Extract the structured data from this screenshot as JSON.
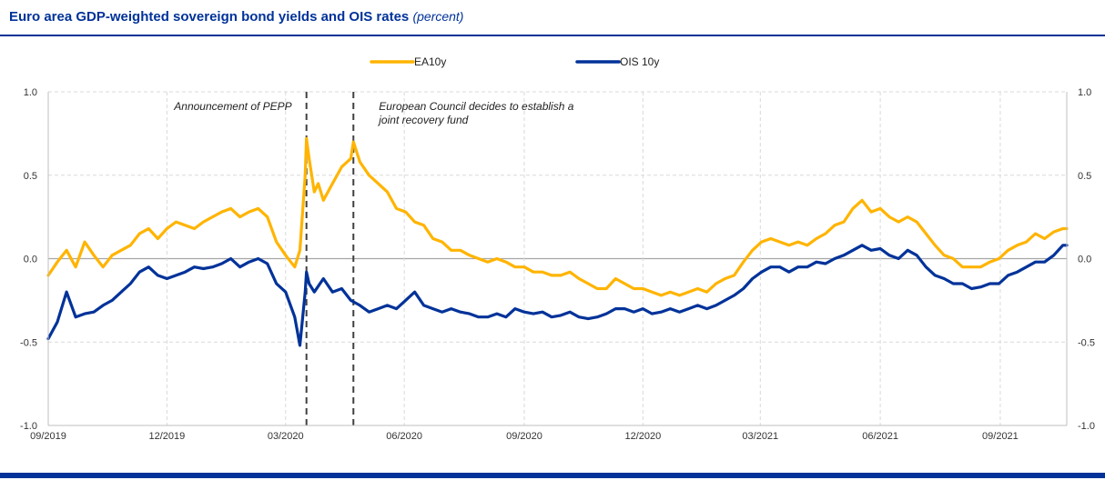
{
  "header": {
    "title": "Euro area GDP-weighted sovereign bond yields and OIS rates",
    "unit": "(percent)"
  },
  "colors": {
    "EA10y": "#FFB400",
    "OIS 10y": "#003299",
    "grid": "#d9d9d9",
    "zero_line": "#a6a6a6",
    "event_line": "#404040"
  },
  "chart_data": {
    "type": "line",
    "title": "Euro area GDP-weighted sovereign bond yields and OIS rates (percent)",
    "xlabel": "",
    "ylabel": "",
    "x_range": [
      "2019-09-02",
      "2021-10-22"
    ],
    "ylim": [
      -1.0,
      1.0
    ],
    "yticks": [
      "1.0",
      "0.5",
      "0.0",
      "-0.5",
      "-1.0"
    ],
    "ytick_values": [
      1.0,
      0.5,
      0.0,
      -0.5,
      -1.0
    ],
    "xticks": [
      "09/2019",
      "12/2019",
      "03/2020",
      "06/2020",
      "09/2020",
      "12/2020",
      "03/2021",
      "06/2021",
      "09/2021"
    ],
    "xtick_dates": [
      "2019-09-02",
      "2019-12-02",
      "2020-03-02",
      "2020-06-01",
      "2020-09-01",
      "2020-12-01",
      "2021-03-01",
      "2021-06-01",
      "2021-09-01"
    ],
    "grid": true,
    "dual_y_axis_mirrored": true,
    "legend_position": "top-center",
    "annotations": [
      {
        "date": "2020-03-18",
        "text": "Announcement of PEPP",
        "label_side": "left"
      },
      {
        "date": "2020-04-23",
        "text": "European Council decides to establish a joint recovery fund",
        "label_side": "right"
      }
    ],
    "series": [
      {
        "name": "EA10y",
        "points": [
          [
            "2019-09-02",
            -0.1
          ],
          [
            "2019-09-09",
            -0.02
          ],
          [
            "2019-09-16",
            0.05
          ],
          [
            "2019-09-23",
            -0.05
          ],
          [
            "2019-09-30",
            0.1
          ],
          [
            "2019-10-07",
            0.02
          ],
          [
            "2019-10-14",
            -0.05
          ],
          [
            "2019-10-21",
            0.02
          ],
          [
            "2019-10-28",
            0.05
          ],
          [
            "2019-11-04",
            0.08
          ],
          [
            "2019-11-11",
            0.15
          ],
          [
            "2019-11-18",
            0.18
          ],
          [
            "2019-11-25",
            0.12
          ],
          [
            "2019-12-02",
            0.18
          ],
          [
            "2019-12-09",
            0.22
          ],
          [
            "2019-12-16",
            0.2
          ],
          [
            "2019-12-23",
            0.18
          ],
          [
            "2019-12-30",
            0.22
          ],
          [
            "2020-01-06",
            0.25
          ],
          [
            "2020-01-13",
            0.28
          ],
          [
            "2020-01-20",
            0.3
          ],
          [
            "2020-01-27",
            0.25
          ],
          [
            "2020-02-03",
            0.28
          ],
          [
            "2020-02-10",
            0.3
          ],
          [
            "2020-02-17",
            0.25
          ],
          [
            "2020-02-24",
            0.1
          ],
          [
            "2020-03-02",
            0.02
          ],
          [
            "2020-03-09",
            -0.05
          ],
          [
            "2020-03-13",
            0.05
          ],
          [
            "2020-03-17",
            0.5
          ],
          [
            "2020-03-18",
            0.72
          ],
          [
            "2020-03-20",
            0.6
          ],
          [
            "2020-03-24",
            0.4
          ],
          [
            "2020-03-27",
            0.45
          ],
          [
            "2020-03-31",
            0.35
          ],
          [
            "2020-04-07",
            0.45
          ],
          [
            "2020-04-14",
            0.55
          ],
          [
            "2020-04-21",
            0.6
          ],
          [
            "2020-04-23",
            0.7
          ],
          [
            "2020-04-28",
            0.58
          ],
          [
            "2020-05-05",
            0.5
          ],
          [
            "2020-05-12",
            0.45
          ],
          [
            "2020-05-19",
            0.4
          ],
          [
            "2020-05-26",
            0.3
          ],
          [
            "2020-06-02",
            0.28
          ],
          [
            "2020-06-09",
            0.22
          ],
          [
            "2020-06-16",
            0.2
          ],
          [
            "2020-06-23",
            0.12
          ],
          [
            "2020-06-30",
            0.1
          ],
          [
            "2020-07-07",
            0.05
          ],
          [
            "2020-07-14",
            0.05
          ],
          [
            "2020-07-21",
            0.02
          ],
          [
            "2020-07-28",
            0.0
          ],
          [
            "2020-08-04",
            -0.02
          ],
          [
            "2020-08-11",
            0.0
          ],
          [
            "2020-08-18",
            -0.02
          ],
          [
            "2020-08-25",
            -0.05
          ],
          [
            "2020-09-01",
            -0.05
          ],
          [
            "2020-09-08",
            -0.08
          ],
          [
            "2020-09-15",
            -0.08
          ],
          [
            "2020-09-22",
            -0.1
          ],
          [
            "2020-09-29",
            -0.1
          ],
          [
            "2020-10-06",
            -0.08
          ],
          [
            "2020-10-13",
            -0.12
          ],
          [
            "2020-10-20",
            -0.15
          ],
          [
            "2020-10-27",
            -0.18
          ],
          [
            "2020-11-03",
            -0.18
          ],
          [
            "2020-11-10",
            -0.12
          ],
          [
            "2020-11-17",
            -0.15
          ],
          [
            "2020-11-24",
            -0.18
          ],
          [
            "2020-12-01",
            -0.18
          ],
          [
            "2020-12-08",
            -0.2
          ],
          [
            "2020-12-15",
            -0.22
          ],
          [
            "2020-12-22",
            -0.2
          ],
          [
            "2020-12-29",
            -0.22
          ],
          [
            "2021-01-05",
            -0.2
          ],
          [
            "2021-01-12",
            -0.18
          ],
          [
            "2021-01-19",
            -0.2
          ],
          [
            "2021-01-26",
            -0.15
          ],
          [
            "2021-02-02",
            -0.12
          ],
          [
            "2021-02-09",
            -0.1
          ],
          [
            "2021-02-16",
            -0.02
          ],
          [
            "2021-02-23",
            0.05
          ],
          [
            "2021-03-02",
            0.1
          ],
          [
            "2021-03-09",
            0.12
          ],
          [
            "2021-03-16",
            0.1
          ],
          [
            "2021-03-23",
            0.08
          ],
          [
            "2021-03-30",
            0.1
          ],
          [
            "2021-04-06",
            0.08
          ],
          [
            "2021-04-13",
            0.12
          ],
          [
            "2021-04-20",
            0.15
          ],
          [
            "2021-04-27",
            0.2
          ],
          [
            "2021-05-04",
            0.22
          ],
          [
            "2021-05-11",
            0.3
          ],
          [
            "2021-05-18",
            0.35
          ],
          [
            "2021-05-25",
            0.28
          ],
          [
            "2021-06-01",
            0.3
          ],
          [
            "2021-06-08",
            0.25
          ],
          [
            "2021-06-15",
            0.22
          ],
          [
            "2021-06-22",
            0.25
          ],
          [
            "2021-06-29",
            0.22
          ],
          [
            "2021-07-06",
            0.15
          ],
          [
            "2021-07-13",
            0.08
          ],
          [
            "2021-07-20",
            0.02
          ],
          [
            "2021-07-27",
            0.0
          ],
          [
            "2021-08-03",
            -0.05
          ],
          [
            "2021-08-10",
            -0.05
          ],
          [
            "2021-08-17",
            -0.05
          ],
          [
            "2021-08-24",
            -0.02
          ],
          [
            "2021-08-31",
            0.0
          ],
          [
            "2021-09-07",
            0.05
          ],
          [
            "2021-09-14",
            0.08
          ],
          [
            "2021-09-21",
            0.1
          ],
          [
            "2021-09-28",
            0.15
          ],
          [
            "2021-10-05",
            0.12
          ],
          [
            "2021-10-12",
            0.16
          ],
          [
            "2021-10-19",
            0.18
          ],
          [
            "2021-10-22",
            0.18
          ]
        ]
      },
      {
        "name": "OIS 10y",
        "points": [
          [
            "2019-09-02",
            -0.48
          ],
          [
            "2019-09-09",
            -0.38
          ],
          [
            "2019-09-16",
            -0.2
          ],
          [
            "2019-09-23",
            -0.35
          ],
          [
            "2019-09-30",
            -0.33
          ],
          [
            "2019-10-07",
            -0.32
          ],
          [
            "2019-10-14",
            -0.28
          ],
          [
            "2019-10-21",
            -0.25
          ],
          [
            "2019-10-28",
            -0.2
          ],
          [
            "2019-11-04",
            -0.15
          ],
          [
            "2019-11-11",
            -0.08
          ],
          [
            "2019-11-18",
            -0.05
          ],
          [
            "2019-11-25",
            -0.1
          ],
          [
            "2019-12-02",
            -0.12
          ],
          [
            "2019-12-09",
            -0.1
          ],
          [
            "2019-12-16",
            -0.08
          ],
          [
            "2019-12-23",
            -0.05
          ],
          [
            "2019-12-30",
            -0.06
          ],
          [
            "2020-01-06",
            -0.05
          ],
          [
            "2020-01-13",
            -0.03
          ],
          [
            "2020-01-20",
            0.0
          ],
          [
            "2020-01-27",
            -0.05
          ],
          [
            "2020-02-03",
            -0.02
          ],
          [
            "2020-02-10",
            0.0
          ],
          [
            "2020-02-17",
            -0.03
          ],
          [
            "2020-02-24",
            -0.15
          ],
          [
            "2020-03-02",
            -0.2
          ],
          [
            "2020-03-09",
            -0.35
          ],
          [
            "2020-03-13",
            -0.52
          ],
          [
            "2020-03-17",
            -0.2
          ],
          [
            "2020-03-18",
            -0.08
          ],
          [
            "2020-03-20",
            -0.15
          ],
          [
            "2020-03-24",
            -0.2
          ],
          [
            "2020-03-31",
            -0.12
          ],
          [
            "2020-04-07",
            -0.2
          ],
          [
            "2020-04-14",
            -0.18
          ],
          [
            "2020-04-21",
            -0.25
          ],
          [
            "2020-04-28",
            -0.28
          ],
          [
            "2020-05-05",
            -0.32
          ],
          [
            "2020-05-12",
            -0.3
          ],
          [
            "2020-05-19",
            -0.28
          ],
          [
            "2020-05-26",
            -0.3
          ],
          [
            "2020-06-02",
            -0.25
          ],
          [
            "2020-06-09",
            -0.2
          ],
          [
            "2020-06-16",
            -0.28
          ],
          [
            "2020-06-23",
            -0.3
          ],
          [
            "2020-06-30",
            -0.32
          ],
          [
            "2020-07-07",
            -0.3
          ],
          [
            "2020-07-14",
            -0.32
          ],
          [
            "2020-07-21",
            -0.33
          ],
          [
            "2020-07-28",
            -0.35
          ],
          [
            "2020-08-04",
            -0.35
          ],
          [
            "2020-08-11",
            -0.33
          ],
          [
            "2020-08-18",
            -0.35
          ],
          [
            "2020-08-25",
            -0.3
          ],
          [
            "2020-09-01",
            -0.32
          ],
          [
            "2020-09-08",
            -0.33
          ],
          [
            "2020-09-15",
            -0.32
          ],
          [
            "2020-09-22",
            -0.35
          ],
          [
            "2020-09-29",
            -0.34
          ],
          [
            "2020-10-06",
            -0.32
          ],
          [
            "2020-10-13",
            -0.35
          ],
          [
            "2020-10-20",
            -0.36
          ],
          [
            "2020-10-27",
            -0.35
          ],
          [
            "2020-11-03",
            -0.33
          ],
          [
            "2020-11-10",
            -0.3
          ],
          [
            "2020-11-17",
            -0.3
          ],
          [
            "2020-11-24",
            -0.32
          ],
          [
            "2020-12-01",
            -0.3
          ],
          [
            "2020-12-08",
            -0.33
          ],
          [
            "2020-12-15",
            -0.32
          ],
          [
            "2020-12-22",
            -0.3
          ],
          [
            "2020-12-29",
            -0.32
          ],
          [
            "2021-01-05",
            -0.3
          ],
          [
            "2021-01-12",
            -0.28
          ],
          [
            "2021-01-19",
            -0.3
          ],
          [
            "2021-01-26",
            -0.28
          ],
          [
            "2021-02-02",
            -0.25
          ],
          [
            "2021-02-09",
            -0.22
          ],
          [
            "2021-02-16",
            -0.18
          ],
          [
            "2021-02-23",
            -0.12
          ],
          [
            "2021-03-02",
            -0.08
          ],
          [
            "2021-03-09",
            -0.05
          ],
          [
            "2021-03-16",
            -0.05
          ],
          [
            "2021-03-23",
            -0.08
          ],
          [
            "2021-03-30",
            -0.05
          ],
          [
            "2021-04-06",
            -0.05
          ],
          [
            "2021-04-13",
            -0.02
          ],
          [
            "2021-04-20",
            -0.03
          ],
          [
            "2021-04-27",
            0.0
          ],
          [
            "2021-05-04",
            0.02
          ],
          [
            "2021-05-11",
            0.05
          ],
          [
            "2021-05-18",
            0.08
          ],
          [
            "2021-05-25",
            0.05
          ],
          [
            "2021-06-01",
            0.06
          ],
          [
            "2021-06-08",
            0.02
          ],
          [
            "2021-06-15",
            0.0
          ],
          [
            "2021-06-22",
            0.05
          ],
          [
            "2021-06-29",
            0.02
          ],
          [
            "2021-07-06",
            -0.05
          ],
          [
            "2021-07-13",
            -0.1
          ],
          [
            "2021-07-20",
            -0.12
          ],
          [
            "2021-07-27",
            -0.15
          ],
          [
            "2021-08-03",
            -0.15
          ],
          [
            "2021-08-10",
            -0.18
          ],
          [
            "2021-08-17",
            -0.17
          ],
          [
            "2021-08-24",
            -0.15
          ],
          [
            "2021-08-31",
            -0.15
          ],
          [
            "2021-09-07",
            -0.1
          ],
          [
            "2021-09-14",
            -0.08
          ],
          [
            "2021-09-21",
            -0.05
          ],
          [
            "2021-09-28",
            -0.02
          ],
          [
            "2021-10-05",
            -0.02
          ],
          [
            "2021-10-12",
            0.02
          ],
          [
            "2021-10-19",
            0.08
          ],
          [
            "2021-10-22",
            0.08
          ]
        ]
      }
    ]
  }
}
